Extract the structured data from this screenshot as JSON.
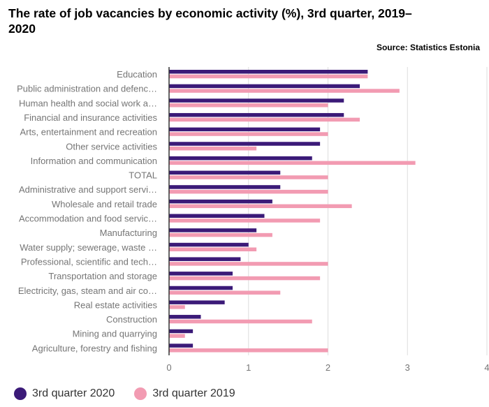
{
  "title": "The rate of job vacancies by economic activity (%), 3rd quarter, 2019–2020",
  "source": "Source: Statistics Estonia",
  "colors": {
    "series_2020": "#3b1a78",
    "series_2019": "#f29bb2",
    "grid": "#dddddd",
    "axis": "#333333"
  },
  "legend": [
    {
      "label": "3rd quarter 2020",
      "color": "#3b1a78"
    },
    {
      "label": "3rd quarter 2019",
      "color": "#f29bb2"
    }
  ],
  "chart_data": {
    "type": "bar",
    "orientation": "horizontal",
    "categories": [
      "Education",
      "Public administration and defenc…",
      "Human health and social work a…",
      "Financial and insurance activities",
      "Arts, entertainment and recreation",
      "Other service activities",
      "Information and communication",
      "TOTAL",
      "Administrative and support servi…",
      "Wholesale and retail trade",
      "Accommodation and food servic…",
      "Manufacturing",
      "Water supply; sewerage, waste …",
      "Professional, scientific and tech…",
      "Transportation and storage",
      "Electricity, gas, steam and air co…",
      "Real estate activities",
      "Construction",
      "Mining and quarrying",
      "Agriculture, forestry and fishing"
    ],
    "series": [
      {
        "name": "3rd quarter 2020",
        "color": "#3b1a78",
        "values": [
          2.5,
          2.4,
          2.2,
          2.2,
          1.9,
          1.9,
          1.8,
          1.4,
          1.4,
          1.3,
          1.2,
          1.1,
          1.0,
          0.9,
          0.8,
          0.8,
          0.7,
          0.4,
          0.3,
          0.3
        ]
      },
      {
        "name": "3rd quarter 2019",
        "color": "#f29bb2",
        "values": [
          2.5,
          2.9,
          2.0,
          2.4,
          2.0,
          1.1,
          3.1,
          2.0,
          2.0,
          2.3,
          1.9,
          1.3,
          1.1,
          2.0,
          1.9,
          1.4,
          0.2,
          1.8,
          0.2,
          2.0
        ]
      }
    ],
    "xlim": [
      0,
      4
    ],
    "xticks": [
      "0",
      "1",
      "2",
      "3",
      "4"
    ],
    "grid": true,
    "legend_position": "bottom-left"
  }
}
